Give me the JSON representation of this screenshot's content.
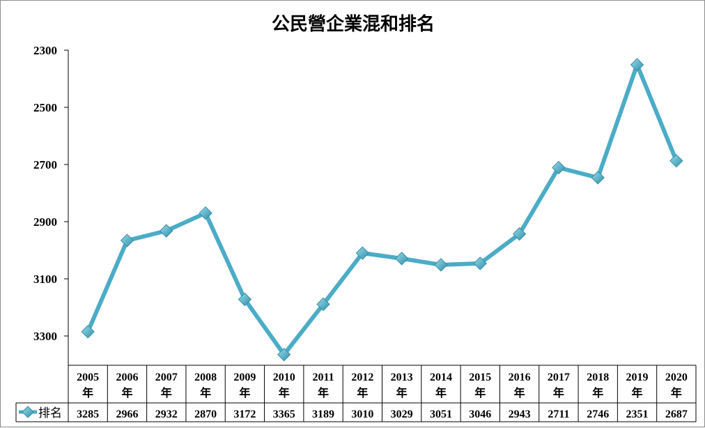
{
  "chart_data": {
    "type": "line",
    "title": "公民營企業混和排名",
    "categories": [
      "2005年",
      "2006年",
      "2007年",
      "2008年",
      "2009年",
      "2010年",
      "2011年",
      "2012年",
      "2013年",
      "2014年",
      "2015年",
      "2016年",
      "2017年",
      "2018年",
      "2019年",
      "2020年"
    ],
    "category_years": [
      "2005",
      "2006",
      "2007",
      "2008",
      "2009",
      "2010",
      "2011",
      "2012",
      "2013",
      "2014",
      "2015",
      "2016",
      "2017",
      "2018",
      "2019",
      "2020"
    ],
    "category_suffix": "年",
    "series": [
      {
        "name": "排名",
        "values": [
          3285,
          2966,
          2932,
          2870,
          3172,
          3365,
          3189,
          3010,
          3029,
          3051,
          3046,
          2943,
          2711,
          2746,
          2351,
          2687
        ],
        "color": "#4bacc6",
        "marker": "diamond"
      }
    ],
    "yticks": [
      2300,
      2500,
      2700,
      2900,
      3100,
      3300
    ],
    "ylim": [
      2300,
      3400
    ],
    "y_reversed": true,
    "grid": false,
    "data_table": true,
    "legend_position": "data-table-left"
  }
}
